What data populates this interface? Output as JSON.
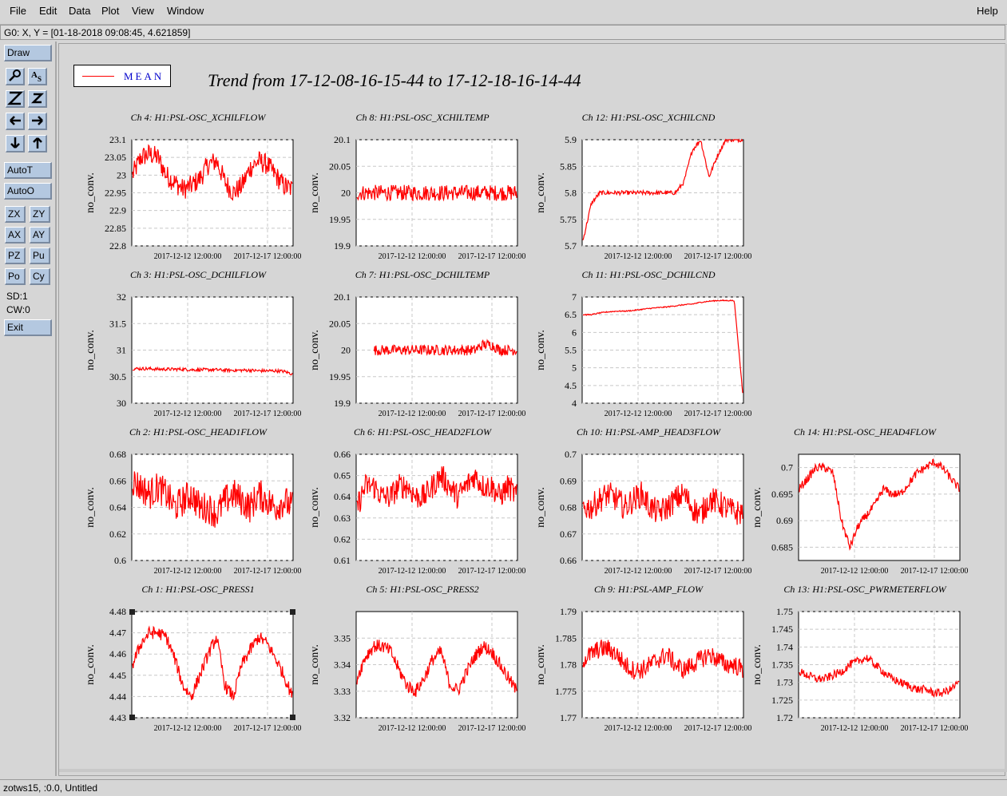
{
  "menu": {
    "file": "File",
    "edit": "Edit",
    "data": "Data",
    "plot": "Plot",
    "view": "View",
    "window": "Window",
    "help": "Help"
  },
  "coord_readout": "G0: X, Y = [01-18-2018 09:08:45, 4.621859]",
  "sidebar": {
    "draw": "Draw",
    "autoT": "AutoT",
    "autoO": "AutoO",
    "zx": "ZX",
    "zy": "ZY",
    "ax": "AX",
    "ay": "AY",
    "pz": "PZ",
    "pu": "Pu",
    "po": "Po",
    "cy": "Cy",
    "sd": "SD:1",
    "cw": "CW:0",
    "exit": "Exit",
    "icons": [
      "magnifier-icon",
      "text-size-icon",
      "zoom-z-icon",
      "zoom-z-small-icon",
      "arrow-left-icon",
      "arrow-right-icon",
      "arrow-down-icon",
      "arrow-up-icon"
    ]
  },
  "plot": {
    "title": "Trend from 17-12-08-16-15-44 to 17-12-18-16-14-44",
    "legend_label": "MEAN",
    "line_color": "#ff0000",
    "ylabel": "no_conv.",
    "xticks": [
      "2017-12-12 12:00:00",
      "2017-12-17 12:00:00"
    ]
  },
  "chart_data": [
    {
      "type": "line",
      "title": "Ch 4: H1:PSL-OSC_XCHILFLOW",
      "ylabel": "no_conv.",
      "yticks": [
        "23.1",
        "23.05",
        "23",
        "22.95",
        "22.9",
        "22.85",
        "22.8"
      ],
      "ylim": [
        22.8,
        23.1
      ],
      "series": [
        {
          "name": "MEAN",
          "values": [
            23.0,
            23.05,
            23.06,
            23.05,
            23.0,
            22.98,
            22.96,
            22.97,
            22.99,
            23.03,
            23.04,
            22.98,
            22.95,
            22.97,
            23.02,
            23.04,
            23.03,
            23.0,
            22.97,
            22.96
          ]
        }
      ],
      "noise": 0.03
    },
    {
      "type": "line",
      "title": "Ch 8: H1:PSL-OSC_XCHILTEMP",
      "ylabel": "no_conv.",
      "yticks": [
        "20.1",
        "20.05",
        "20",
        "19.95",
        "19.9"
      ],
      "ylim": [
        19.9,
        20.1
      ],
      "series": [
        {
          "name": "MEAN",
          "values": [
            20.0,
            20.0,
            20.0,
            20.0,
            20.0,
            20.0,
            20.0,
            20.0,
            20.0,
            20.0,
            20.0,
            20.0,
            20.0,
            20.0,
            20.0,
            20.0,
            20.0,
            20.0,
            20.0,
            20.0
          ]
        }
      ],
      "noise": 0.015
    },
    {
      "type": "line",
      "title": "Ch 12: H1:PSL-OSC_XCHILCND",
      "ylabel": "no_conv.",
      "yticks": [
        "5.9",
        "5.85",
        "5.8",
        "5.75",
        "5.7"
      ],
      "ylim": [
        5.7,
        5.9
      ],
      "series": [
        {
          "name": "MEAN",
          "values": [
            5.71,
            5.78,
            5.8,
            5.8,
            5.8,
            5.8,
            5.8,
            5.8,
            5.8,
            5.8,
            5.8,
            5.8,
            5.82,
            5.88,
            5.9,
            5.83,
            5.87,
            5.9,
            5.9,
            5.9
          ]
        }
      ],
      "noise": 0.004
    },
    {
      "type": "line",
      "title": "Ch 3: H1:PSL-OSC_DCHILFLOW",
      "ylabel": "no_conv.",
      "yticks": [
        "32",
        "31.5",
        "31",
        "30.5",
        "30"
      ],
      "ylim": [
        30,
        32
      ],
      "series": [
        {
          "name": "MEAN",
          "values": [
            30.65,
            30.65,
            30.65,
            30.64,
            30.64,
            30.64,
            30.64,
            30.63,
            30.63,
            30.63,
            30.63,
            30.62,
            30.62,
            30.62,
            30.62,
            30.61,
            30.61,
            30.61,
            30.6,
            30.55
          ]
        }
      ],
      "noise": 0.03
    },
    {
      "type": "line",
      "title": "Ch 7: H1:PSL-OSC_DCHILTEMP",
      "ylabel": "no_conv.",
      "yticks": [
        "20.1",
        "20.05",
        "20",
        "19.95",
        "19.9"
      ],
      "ylim": [
        19.9,
        20.1
      ],
      "series": [
        {
          "name": "MEAN",
          "values": [
            null,
            null,
            20.0,
            20.0,
            20.0,
            20.0,
            20.0,
            20.0,
            20.0,
            20.0,
            20.0,
            20.0,
            20.0,
            20.0,
            20.0,
            20.01,
            20.01,
            20.0,
            20.0,
            20.0
          ]
        }
      ],
      "noise": 0.01
    },
    {
      "type": "line",
      "title": "Ch 11: H1:PSL-OSC_DCHILCND",
      "ylabel": "no_conv.",
      "yticks": [
        "7",
        "6.5",
        "6",
        "5.5",
        "5",
        "4.5",
        "4"
      ],
      "ylim": [
        4,
        7
      ],
      "series": [
        {
          "name": "MEAN",
          "values": [
            6.5,
            6.5,
            6.55,
            6.58,
            6.6,
            6.6,
            6.62,
            6.65,
            6.68,
            6.7,
            6.72,
            6.75,
            6.78,
            6.8,
            6.85,
            6.88,
            6.9,
            6.9,
            6.9,
            4.3
          ]
        }
      ],
      "noise": 0.015
    },
    {
      "type": "line",
      "title": "Ch 2: H1:PSL-OSC_HEAD1FLOW",
      "ylabel": "no_conv.",
      "yticks": [
        "0.68",
        "0.66",
        "0.64",
        "0.62",
        "0.6"
      ],
      "ylim": [
        0.6,
        0.68
      ],
      "series": [
        {
          "name": "MEAN",
          "values": [
            0.66,
            0.655,
            0.65,
            0.655,
            0.65,
            0.64,
            0.645,
            0.65,
            0.64,
            0.64,
            0.635,
            0.645,
            0.65,
            0.645,
            0.64,
            0.65,
            0.645,
            0.64,
            0.645,
            0.64
          ]
        }
      ],
      "noise": 0.012
    },
    {
      "type": "line",
      "title": "Ch 6: H1:PSL-OSC_HEAD2FLOW",
      "ylabel": "no_conv.",
      "yticks": [
        "0.66",
        "0.65",
        "0.64",
        "0.63",
        "0.62",
        "0.61"
      ],
      "ylim": [
        0.61,
        0.66
      ],
      "series": [
        {
          "name": "MEAN",
          "values": [
            0.635,
            0.645,
            0.645,
            0.64,
            0.64,
            0.645,
            0.645,
            0.64,
            0.64,
            0.645,
            0.65,
            0.645,
            0.64,
            0.645,
            0.65,
            0.645,
            0.645,
            0.64,
            0.645,
            0.64
          ]
        }
      ],
      "noise": 0.006
    },
    {
      "type": "line",
      "title": "Ch 10: H1:PSL-AMP_HEAD3FLOW",
      "ylabel": "no_conv.",
      "yticks": [
        "0.7",
        "0.69",
        "0.68",
        "0.67",
        "0.66"
      ],
      "ylim": [
        0.66,
        0.7
      ],
      "series": [
        {
          "name": "MEAN",
          "values": [
            0.68,
            0.68,
            0.683,
            0.685,
            0.683,
            0.68,
            0.683,
            0.685,
            0.68,
            0.678,
            0.68,
            0.683,
            0.685,
            0.68,
            0.677,
            0.683,
            0.682,
            0.68,
            0.678,
            0.678
          ]
        }
      ],
      "noise": 0.005
    },
    {
      "type": "line",
      "title": "Ch 14: H1:PSL-OSC_HEAD4FLOW",
      "ylabel": "no_conv.",
      "yticks": [
        "0.7",
        "0.695",
        "0.69",
        "0.685"
      ],
      "ylim": [
        0.6825,
        0.7025
      ],
      "series": [
        {
          "name": "MEAN",
          "values": [
            0.696,
            0.698,
            0.7,
            0.7,
            0.699,
            0.69,
            0.685,
            0.689,
            0.691,
            0.693,
            0.696,
            0.695,
            0.695,
            0.697,
            0.699,
            0.7,
            0.701,
            0.7,
            0.698,
            0.696
          ]
        }
      ],
      "noise": 0.0008
    },
    {
      "type": "line",
      "title": "Ch 1: H1:PSL-OSC_PRESS1",
      "ylabel": "no_conv.",
      "yticks": [
        "4.48",
        "4.47",
        "4.46",
        "4.45",
        "4.44",
        "4.43"
      ],
      "ylim": [
        4.43,
        4.48
      ],
      "series": [
        {
          "name": "MEAN",
          "values": [
            4.455,
            4.465,
            4.47,
            4.47,
            4.468,
            4.458,
            4.445,
            4.44,
            4.45,
            4.46,
            4.468,
            4.445,
            4.44,
            4.455,
            4.462,
            4.468,
            4.465,
            4.458,
            4.45,
            4.44
          ]
        }
      ],
      "noise": 0.003
    },
    {
      "type": "line",
      "title": "Ch 5: H1:PSL-OSC_PRESS2",
      "ylabel": "no_conv.",
      "yticks": [
        "3.35",
        "3.34",
        "3.33",
        "3.32"
      ],
      "ylim": [
        3.32,
        3.36
      ],
      "series": [
        {
          "name": "MEAN",
          "values": [
            3.335,
            3.343,
            3.347,
            3.347,
            3.345,
            3.338,
            3.332,
            3.33,
            3.335,
            3.342,
            3.345,
            3.333,
            3.33,
            3.337,
            3.343,
            3.347,
            3.345,
            3.34,
            3.335,
            3.33
          ]
        }
      ],
      "noise": 0.0025
    },
    {
      "type": "line",
      "title": "Ch 9: H1:PSL-AMP_FLOW",
      "ylabel": "no_conv.",
      "yticks": [
        "1.79",
        "1.785",
        "1.78",
        "1.775",
        "1.77"
      ],
      "ylim": [
        1.77,
        1.79
      ],
      "series": [
        {
          "name": "MEAN",
          "values": [
            1.781,
            1.782,
            1.783,
            1.783,
            1.782,
            1.78,
            1.779,
            1.779,
            1.78,
            1.781,
            1.782,
            1.78,
            1.779,
            1.78,
            1.781,
            1.782,
            1.781,
            1.78,
            1.78,
            1.779
          ]
        }
      ],
      "noise": 0.0018
    },
    {
      "type": "line",
      "title": "Ch 13: H1:PSL-OSC_PWRMETERFLOW",
      "ylabel": "no_conv.",
      "yticks": [
        "1.75",
        "1.745",
        "1.74",
        "1.735",
        "1.73",
        "1.725",
        "1.72"
      ],
      "ylim": [
        1.72,
        1.75
      ],
      "series": [
        {
          "name": "MEAN",
          "values": [
            1.733,
            1.732,
            1.731,
            1.731,
            1.732,
            1.733,
            1.735,
            1.736,
            1.737,
            1.735,
            1.733,
            1.731,
            1.73,
            1.729,
            1.728,
            1.728,
            1.727,
            1.727,
            1.728,
            1.73
          ]
        }
      ],
      "noise": 0.0012
    }
  ],
  "statusbar": "zotws15, :0.0, Untitled"
}
